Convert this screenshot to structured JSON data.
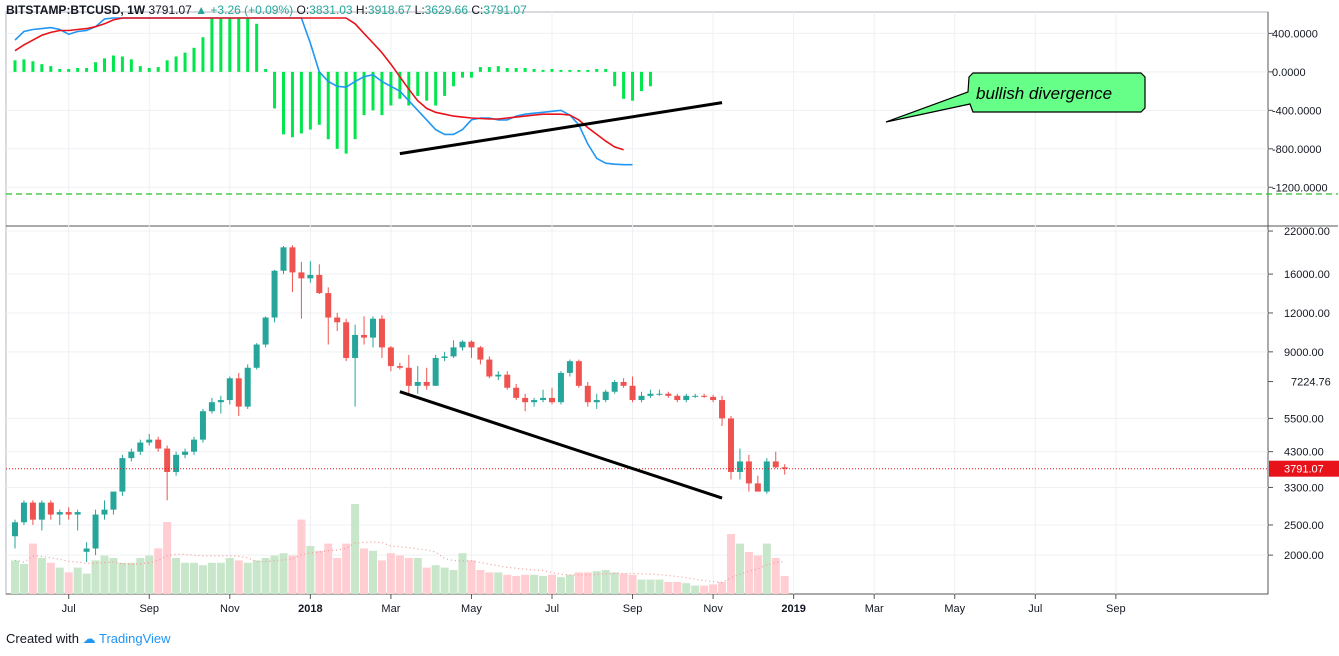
{
  "header": {
    "symbol": "BITSTAMP:BTCUSD, 1W",
    "last": "3791.07",
    "change": "+3.26 (+0.09%)",
    "o_label": "O:",
    "o_value": "3831.03",
    "h_label": "H:",
    "h_value": "3918.67",
    "l_label": "L:",
    "l_value": "3629.66",
    "c_label": "C:",
    "c_value": "3791.07"
  },
  "footer": {
    "created_with": "Created with",
    "brand": "TradingView"
  },
  "colors": {
    "up": "#26a69a",
    "down": "#ef5350",
    "vol_up": "#c8e6c9",
    "vol_down": "#ffcdd2",
    "macd_hist": "#00e64d",
    "macd_line": "#2196f3",
    "signal_line": "#e8121b",
    "callout_fill": "#66ff88",
    "price_line": "#e8121b",
    "dashed": "#2bbf2b"
  },
  "chart_data": [
    {
      "type": "bar",
      "panel": "MACD",
      "y_ticks": [
        "400.0000",
        "0.0000",
        "-400.0000",
        "-800.0000",
        "-1200.0000"
      ],
      "ylim": [
        -1270,
        560
      ],
      "histogram": [
        120,
        130,
        110,
        80,
        60,
        30,
        30,
        40,
        40,
        100,
        140,
        170,
        160,
        130,
        60,
        40,
        50,
        120,
        160,
        200,
        250,
        360,
        600,
        900,
        1100,
        1100,
        900,
        500,
        30,
        -380,
        -650,
        -680,
        -640,
        -600,
        -550,
        -700,
        -800,
        -850,
        -700,
        -450,
        -400,
        -450,
        -350,
        -280,
        -350,
        -250,
        -300,
        -350,
        -250,
        -150,
        -60,
        -60,
        50,
        50,
        60,
        40,
        40,
        40,
        30,
        20,
        30,
        20,
        20,
        20,
        20,
        30,
        30,
        -150,
        -280,
        -300,
        -200,
        -150
      ],
      "macd_line": [
        330,
        420,
        440,
        450,
        460,
        440,
        390,
        420,
        430,
        470,
        550,
        650,
        750,
        850,
        950,
        1050,
        1150,
        1250,
        1400,
        1550,
        1700,
        1850,
        2000,
        2100,
        2150,
        2150,
        2050,
        1900,
        1650,
        1300,
        1100,
        900,
        600,
        300,
        0,
        -100,
        -150,
        -160,
        -100,
        -50,
        -30,
        -100,
        -150,
        -200,
        -300,
        -400,
        -500,
        -600,
        -650,
        -650,
        -600,
        -500,
        -480,
        -480,
        -500,
        -500,
        -460,
        -440,
        -430,
        -420,
        -410,
        -400,
        -450,
        -550,
        -750,
        -900,
        -950,
        -960,
        -965,
        -965
      ],
      "signal_line": [
        220,
        280,
        330,
        380,
        410,
        430,
        430,
        440,
        450,
        470,
        500,
        540,
        600,
        660,
        720,
        800,
        880,
        960,
        1050,
        1150,
        1250,
        1350,
        1450,
        1550,
        1650,
        1720,
        1750,
        1760,
        1720,
        1650,
        1550,
        1450,
        1300,
        1150,
        1000,
        850,
        700,
        600,
        500,
        400,
        300,
        200,
        80,
        -50,
        -180,
        -300,
        -380,
        -420,
        -440,
        -460,
        -470,
        -480,
        -485,
        -490,
        -490,
        -480,
        -470,
        -460,
        -450,
        -440,
        -440,
        -440,
        -450,
        -500,
        -580,
        -650,
        -720,
        -780,
        -810
      ],
      "trendline": {
        "from": [
          "2018-04-02",
          -850
        ],
        "to": [
          "2018-12-10",
          -320
        ]
      },
      "baseline": -1270
    },
    {
      "type": "candlestick",
      "panel": "Price",
      "y_ticks": [
        "22000.00",
        "16000.00",
        "12000.00",
        "9000.00",
        "5500.00",
        "4300.00",
        "3300.00",
        "2500.00",
        "2000.00"
      ],
      "x_ticks": [
        "Jul",
        "Sep",
        "Nov",
        "2018",
        "Mar",
        "May",
        "Jul",
        "Sep",
        "Nov",
        "2019",
        "Mar",
        "May",
        "Jul",
        "Sep"
      ],
      "x_tick_weeks": [
        6,
        15,
        24,
        33,
        42,
        51,
        60,
        69,
        78,
        87,
        96,
        105,
        114,
        123
      ],
      "ylim": [
        1500,
        22500
      ],
      "scale": "log",
      "price_label": "3791.07",
      "price_marker": "7224.76",
      "price_marker_value": 7224.76,
      "ohlc": [
        [
          2300,
          2600,
          2100,
          2550
        ],
        [
          2550,
          3000,
          2500,
          2950
        ],
        [
          2950,
          3000,
          2500,
          2600
        ],
        [
          2600,
          3000,
          2400,
          2950
        ],
        [
          2950,
          3000,
          2600,
          2700
        ],
        [
          2700,
          2800,
          2500,
          2750
        ],
        [
          2750,
          2850,
          2600,
          2700
        ],
        [
          2700,
          2800,
          2400,
          2750
        ],
        [
          2050,
          2200,
          1900,
          2100
        ],
        [
          2100,
          2800,
          2000,
          2700
        ],
        [
          2700,
          3000,
          2600,
          2800
        ],
        [
          2800,
          3200,
          2700,
          3200
        ],
        [
          3200,
          4200,
          3100,
          4100
        ],
        [
          4100,
          4400,
          4000,
          4300
        ],
        [
          4300,
          4700,
          4200,
          4600
        ],
        [
          4600,
          4900,
          4500,
          4700
        ],
        [
          4700,
          4800,
          4300,
          4400
        ],
        [
          4400,
          4500,
          3000,
          3700
        ],
        [
          3700,
          4300,
          3600,
          4200
        ],
        [
          4200,
          4400,
          4100,
          4300
        ],
        [
          4300,
          4800,
          4200,
          4700
        ],
        [
          4700,
          5900,
          4600,
          5800
        ],
        [
          5800,
          6400,
          5700,
          6200
        ],
        [
          6200,
          6500,
          5700,
          6300
        ],
        [
          6300,
          7500,
          6100,
          7400
        ],
        [
          7400,
          7700,
          5600,
          6000
        ],
        [
          6000,
          8200,
          5900,
          8000
        ],
        [
          8000,
          9600,
          7900,
          9500
        ],
        [
          9500,
          11700,
          9300,
          11600
        ],
        [
          11600,
          16500,
          11200,
          16400
        ],
        [
          16400,
          19700,
          16000,
          19500
        ],
        [
          19500,
          19800,
          14000,
          16200
        ],
        [
          16200,
          17500,
          11500,
          15500
        ],
        [
          15500,
          17600,
          15000,
          15900
        ],
        [
          15900,
          17200,
          13800,
          13900
        ],
        [
          13900,
          14500,
          9500,
          11600
        ],
        [
          11600,
          12000,
          10500,
          11200
        ],
        [
          11200,
          11500,
          8400,
          8600
        ],
        [
          8600,
          11000,
          6000,
          10200
        ],
        [
          10200,
          11700,
          9500,
          10000
        ],
        [
          10000,
          11700,
          9300,
          11500
        ],
        [
          11500,
          11800,
          8600,
          9300
        ],
        [
          9300,
          9400,
          7800,
          8100
        ],
        [
          8100,
          8300,
          7900,
          8000
        ],
        [
          8000,
          8800,
          6500,
          7000
        ],
        [
          7000,
          8100,
          6600,
          7200
        ],
        [
          7200,
          8000,
          6800,
          7000
        ],
        [
          7000,
          8800,
          7000,
          8600
        ],
        [
          8600,
          9000,
          8400,
          8700
        ],
        [
          8700,
          9800,
          8600,
          9300
        ],
        [
          9300,
          9800,
          9100,
          9700
        ],
        [
          9700,
          9800,
          8600,
          9300
        ],
        [
          9300,
          9400,
          8200,
          8500
        ],
        [
          8500,
          8700,
          7400,
          7500
        ],
        [
          7500,
          7800,
          7300,
          7600
        ],
        [
          7600,
          7800,
          6800,
          6900
        ],
        [
          6900,
          7100,
          6300,
          6400
        ],
        [
          6400,
          6600,
          5800,
          6200
        ],
        [
          6200,
          6400,
          6000,
          6300
        ],
        [
          6300,
          6800,
          6200,
          6400
        ],
        [
          6400,
          6900,
          6100,
          6200
        ],
        [
          6200,
          7800,
          6100,
          7700
        ],
        [
          7700,
          8500,
          7500,
          8400
        ],
        [
          8400,
          8500,
          6900,
          7000
        ],
        [
          7000,
          7200,
          6000,
          6200
        ],
        [
          6200,
          6600,
          5900,
          6300
        ],
        [
          6300,
          6800,
          6200,
          6700
        ],
        [
          6700,
          7300,
          6600,
          7200
        ],
        [
          7200,
          7400,
          6900,
          7000
        ],
        [
          7000,
          7500,
          6200,
          6300
        ],
        [
          6300,
          6700,
          6200,
          6500
        ],
        [
          6500,
          6800,
          6400,
          6600
        ],
        [
          6600,
          6800,
          6500,
          6600
        ],
        [
          6600,
          6700,
          6400,
          6500
        ],
        [
          6500,
          6600,
          6200,
          6300
        ],
        [
          6300,
          6600,
          6200,
          6500
        ],
        [
          6500,
          6600,
          6400,
          6500
        ],
        [
          6500,
          6600,
          6400,
          6450
        ],
        [
          6450,
          6550,
          6200,
          6300
        ],
        [
          6300,
          6500,
          5200,
          5500
        ],
        [
          5500,
          5600,
          3500,
          3700
        ],
        [
          3700,
          4400,
          3500,
          4000
        ],
        [
          4000,
          4200,
          3200,
          3400
        ],
        [
          3400,
          3600,
          3200,
          3200
        ],
        [
          3200,
          4100,
          3150,
          4000
        ],
        [
          4000,
          4300,
          3800,
          3830
        ],
        [
          3831.03,
          3918.67,
          3629.66,
          3791.07
        ]
      ],
      "volume": [
        0.28,
        0.25,
        0.42,
        0.3,
        0.26,
        0.22,
        0.18,
        0.22,
        0.17,
        0.28,
        0.32,
        0.3,
        0.26,
        0.26,
        0.3,
        0.32,
        0.38,
        0.6,
        0.3,
        0.26,
        0.26,
        0.24,
        0.26,
        0.26,
        0.3,
        0.28,
        0.26,
        0.28,
        0.3,
        0.32,
        0.34,
        0.32,
        0.62,
        0.4,
        0.36,
        0.42,
        0.3,
        0.42,
        0.75,
        0.38,
        0.36,
        0.28,
        0.34,
        0.32,
        0.3,
        0.3,
        0.22,
        0.24,
        0.22,
        0.2,
        0.34,
        0.28,
        0.2,
        0.18,
        0.18,
        0.16,
        0.15,
        0.16,
        0.16,
        0.15,
        0.16,
        0.14,
        0.16,
        0.18,
        0.18,
        0.19,
        0.2,
        0.18,
        0.17,
        0.16,
        0.12,
        0.12,
        0.12,
        0.1,
        0.1,
        0.09,
        0.07,
        0.07,
        0.08,
        0.1,
        0.5,
        0.42,
        0.35,
        0.32,
        0.42,
        0.3,
        0.15
      ],
      "support_line": {
        "from": [
          "2018-04-02",
          6700
        ],
        "to": [
          "2018-12-10",
          3050
        ]
      }
    }
  ],
  "annotation": {
    "text": "bullish divergence"
  }
}
